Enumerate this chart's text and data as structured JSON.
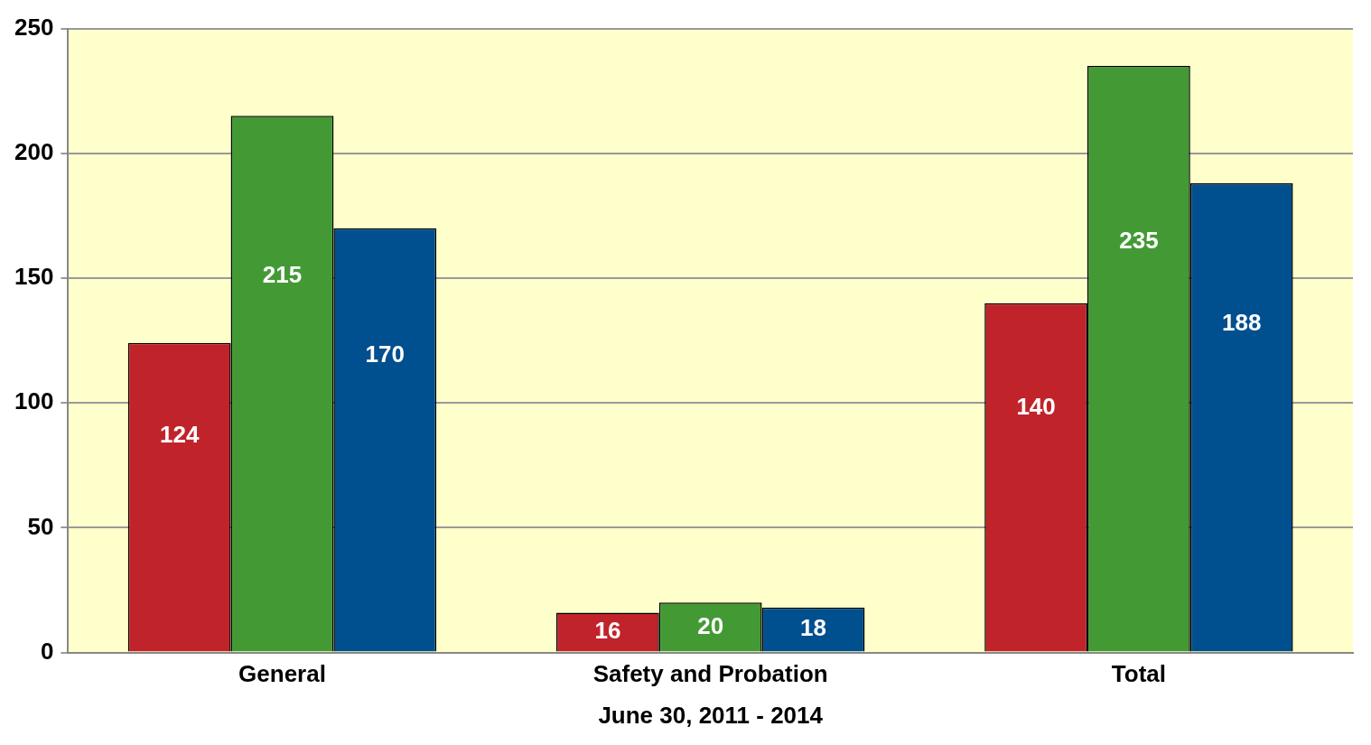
{
  "chart_data": {
    "type": "bar",
    "xlabel": "June 30, 2011 - 2014",
    "categories": [
      "General",
      "Safety and Probation",
      "Total"
    ],
    "series": [
      {
        "color": "#c1232b",
        "values": [
          124,
          16,
          140
        ]
      },
      {
        "color": "#439a35",
        "values": [
          215,
          20,
          235
        ]
      },
      {
        "color": "#004f8f",
        "values": [
          170,
          18,
          188
        ]
      }
    ],
    "ylim": [
      0,
      250
    ],
    "yticks": [
      0,
      50,
      100,
      150,
      200,
      250
    ],
    "grid": "y",
    "legend": false,
    "data_labels": true
  }
}
